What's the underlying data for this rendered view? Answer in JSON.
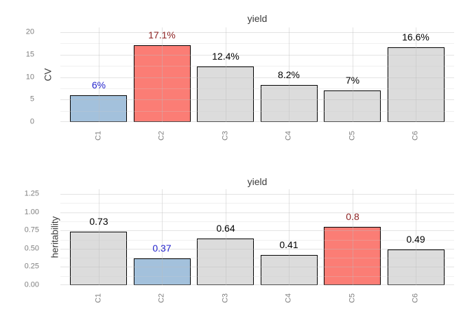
{
  "page": {
    "background": "#ffffff"
  },
  "colors": {
    "grid": "#ebebeb",
    "axis_text": "#7f7f7f",
    "title_text": "#3a3a3a",
    "bar_border": "#000000",
    "roles": {
      "normal": {
        "fill": "#dcdcdc",
        "label": "#000000"
      },
      "low": {
        "fill": "#a3c1dc",
        "label": "#2323cc"
      },
      "high": {
        "fill": "#fb7d75",
        "label": "#8b1f1f"
      }
    }
  },
  "chart_data": [
    {
      "type": "bar",
      "title": "yield",
      "xlabel": "",
      "ylabel": "CV",
      "categories": [
        "C1",
        "C2",
        "C3",
        "C4",
        "C5",
        "C6"
      ],
      "values": [
        6,
        17.1,
        12.4,
        8.2,
        7,
        16.6
      ],
      "bar_labels": [
        "6%",
        "17.1%",
        "12.4%",
        "8.2%",
        "7%",
        "16.6%"
      ],
      "bar_roles": [
        "low",
        "high",
        "normal",
        "normal",
        "normal",
        "normal"
      ],
      "yticks": [
        0,
        5,
        10,
        15,
        20
      ],
      "ytick_labels": [
        "0",
        "5",
        "10",
        "15",
        "20"
      ],
      "ylim": [
        0,
        21
      ],
      "grid": "major+minor",
      "legend": "none"
    },
    {
      "type": "bar",
      "title": "yield",
      "xlabel": "",
      "ylabel": "heritability",
      "categories": [
        "C1",
        "C2",
        "C3",
        "C4",
        "C5",
        "C6"
      ],
      "values": [
        0.73,
        0.37,
        0.64,
        0.41,
        0.8,
        0.49
      ],
      "bar_labels": [
        "0.73",
        "0.37",
        "0.64",
        "0.41",
        "0.8",
        "0.49"
      ],
      "bar_roles": [
        "normal",
        "low",
        "normal",
        "normal",
        "high",
        "normal"
      ],
      "yticks": [
        0,
        0.25,
        0.5,
        0.75,
        1,
        1.25
      ],
      "ytick_labels": [
        "0.00",
        "0.25",
        "0.50",
        "0.75",
        "1.00",
        "1.25"
      ],
      "ylim": [
        0,
        1.32
      ],
      "grid": "major+minor",
      "legend": "none"
    }
  ]
}
